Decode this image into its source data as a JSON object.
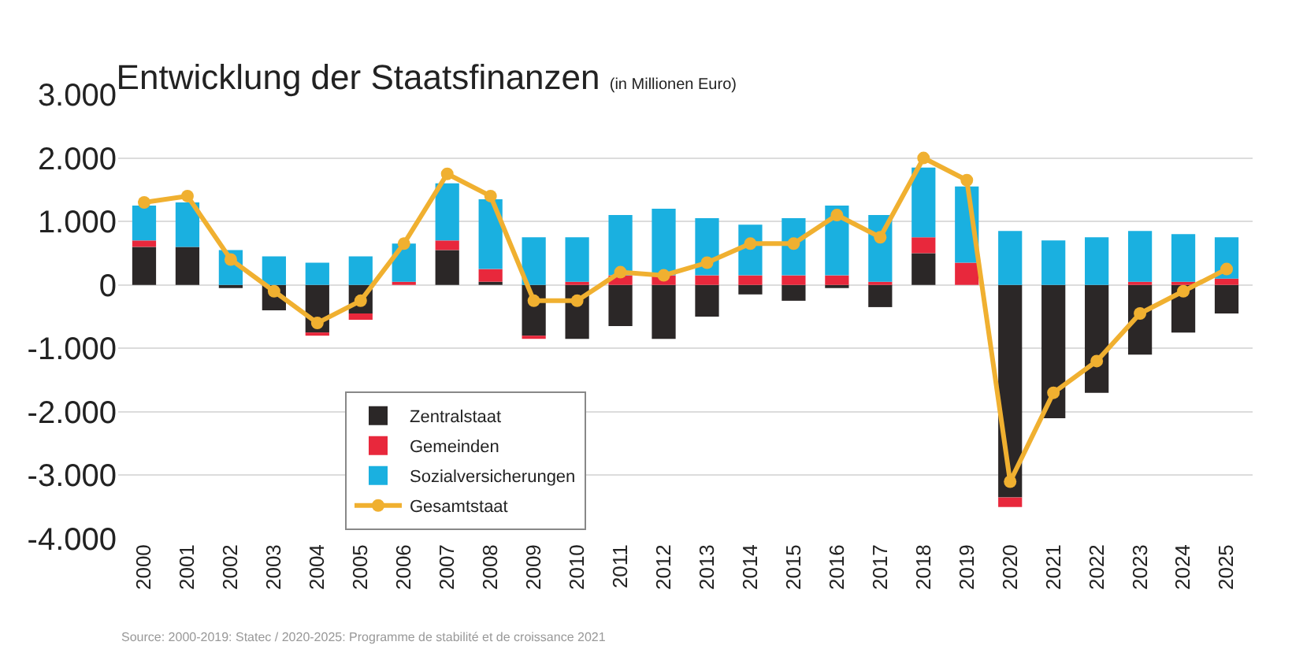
{
  "chart_data": {
    "type": "bar",
    "title": "Entwicklung der Staatsfinanzen",
    "subtitle": "(in Millionen Euro)",
    "categories": [
      "2000",
      "2001",
      "2002",
      "2003",
      "2004",
      "2005",
      "2006",
      "2007",
      "2008",
      "2009",
      "2010",
      "2011",
      "2012",
      "2013",
      "2014",
      "2015",
      "2016",
      "2017",
      "2018",
      "2019",
      "2020",
      "2021",
      "2022",
      "2023",
      "2024",
      "2025"
    ],
    "stacked": true,
    "series": [
      {
        "name": "Zentralstaat",
        "color": "#2b2727",
        "values": [
          600,
          600,
          -50,
          -400,
          -750,
          -450,
          null,
          550,
          50,
          -800,
          -850,
          -650,
          -850,
          -500,
          -150,
          -250,
          -50,
          -350,
          500,
          0,
          -3350,
          -2100,
          -1700,
          -1100,
          -750,
          -450
        ]
      },
      {
        "name": "Gemeinden",
        "color": "#e8283c",
        "values": [
          100,
          0,
          null,
          0,
          -50,
          -100,
          50,
          150,
          200,
          -50,
          50,
          150,
          150,
          150,
          150,
          150,
          150,
          50,
          250,
          350,
          -150,
          0,
          0,
          50,
          50,
          100
        ]
      },
      {
        "name": "Sozialversicherungen",
        "color": "#1ab0e0",
        "values": [
          550,
          700,
          550,
          450,
          350,
          450,
          600,
          900,
          1100,
          750,
          700,
          950,
          1050,
          900,
          800,
          900,
          1100,
          1050,
          1100,
          1200,
          850,
          700,
          750,
          800,
          750,
          650
        ]
      },
      {
        "name": "Gesamtstaat",
        "type": "line",
        "color": "#f0b030",
        "values": [
          1300,
          1400,
          400,
          -100,
          -600,
          -250,
          650,
          1750,
          1400,
          -250,
          -250,
          200,
          150,
          350,
          650,
          650,
          1100,
          750,
          2000,
          1650,
          -3100,
          -1700,
          -1200,
          -450,
          -100,
          250
        ]
      }
    ],
    "ylim": [
      -4000,
      3000
    ],
    "yticks": [
      {
        "value": -4000,
        "label": "-4.000"
      },
      {
        "value": -3000,
        "label": "-3.000"
      },
      {
        "value": -2000,
        "label": "-2.000"
      },
      {
        "value": -1000,
        "label": "-1.000"
      },
      0,
      {
        "value": 1000,
        "label": "1.000"
      },
      {
        "value": 2000,
        "label": "2.000"
      },
      {
        "value": 3000,
        "label": "3.000"
      }
    ],
    "grid": "y",
    "legend": "bottom left",
    "marker": "circle",
    "annotations": [
      "Source: 2000-2019: Statec / 2020-2025: Programme de stabilité et de croissance 2021"
    ]
  }
}
